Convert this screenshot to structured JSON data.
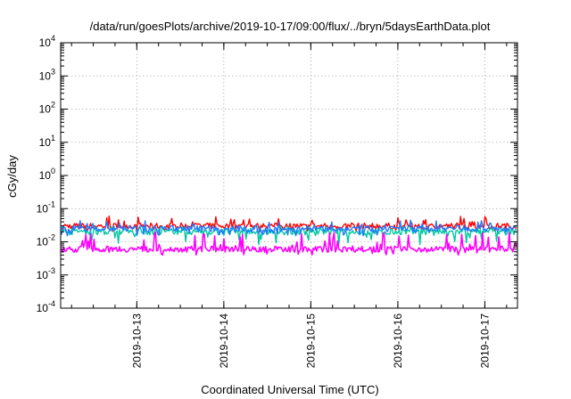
{
  "chart_data": {
    "type": "line",
    "title": "/data/run/goesPlots/archive/2019-10-17/09:00/flux/../bryn/5daysEarthData.plot",
    "xlabel": "Coordinated Universal Time (UTC)",
    "ylabel": "cGy/day",
    "y_scale": "log",
    "ylim_exponents": [
      -4,
      4
    ],
    "y_ticks": [
      {
        "base": "10",
        "exp": "-4",
        "value": 0.0001
      },
      {
        "base": "10",
        "exp": "-3",
        "value": 0.001
      },
      {
        "base": "10",
        "exp": "-2",
        "value": 0.01
      },
      {
        "base": "10",
        "exp": "-1",
        "value": 0.1
      },
      {
        "base": "10",
        "exp": "0",
        "value": 1
      },
      {
        "base": "10",
        "exp": "1",
        "value": 10
      },
      {
        "base": "10",
        "exp": "2",
        "value": 100
      },
      {
        "base": "10",
        "exp": "3",
        "value": 1000
      },
      {
        "base": "10",
        "exp": "4",
        "value": 10000
      }
    ],
    "xlim": [
      "2019-10-12 03:00",
      "2019-10-17 09:00"
    ],
    "x_ticks": [
      "2019-10-13",
      "2019-10-14",
      "2019-10-15",
      "2019-10-16",
      "2019-10-17"
    ],
    "grid": true,
    "legend": "none",
    "series": [
      {
        "color": "#ff0000",
        "typical_value": 0.03,
        "range": [
          0.02,
          0.06
        ]
      },
      {
        "color": "#00c8a0",
        "typical_value": 0.02,
        "range": [
          0.008,
          0.03
        ]
      },
      {
        "color": "#1e78ff",
        "typical_value": 0.025,
        "range": [
          0.015,
          0.045
        ]
      },
      {
        "color": "#ff00ff",
        "typical_value": 0.006,
        "range": [
          0.004,
          0.02
        ]
      }
    ]
  }
}
